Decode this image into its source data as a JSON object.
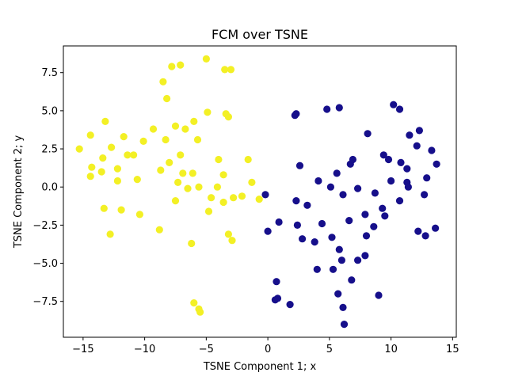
{
  "chart_data": {
    "type": "scatter",
    "title": "FCM over TSNE",
    "xlabel": "TSNE Component 1; x",
    "ylabel": "TSNE Component 2; y",
    "xlim": [
      -16.6,
      15.3
    ],
    "ylim": [
      -9.85,
      9.25
    ],
    "x_ticks": [
      -15,
      -10,
      -5,
      0,
      5,
      10,
      15
    ],
    "x_tick_labels": [
      "−15",
      "−10",
      "−5",
      "0",
      "5",
      "10",
      "15"
    ],
    "y_ticks": [
      -7.5,
      -5.0,
      -2.5,
      0.0,
      2.5,
      5.0,
      7.5
    ],
    "y_tick_labels": [
      "−7.5",
      "−5.0",
      "−2.5",
      "0.0",
      "2.5",
      "5.0",
      "7.5"
    ],
    "grid": false,
    "series": [
      {
        "color": "#f3f025",
        "points": [
          [
            -15.3,
            2.5
          ],
          [
            -14.4,
            3.4
          ],
          [
            -14.3,
            1.3
          ],
          [
            -14.4,
            0.7
          ],
          [
            -13.5,
            1.0
          ],
          [
            -13.4,
            1.9
          ],
          [
            -13.2,
            4.3
          ],
          [
            -13.3,
            -1.4
          ],
          [
            -12.8,
            -3.1
          ],
          [
            -12.7,
            2.6
          ],
          [
            -12.2,
            1.2
          ],
          [
            -12.2,
            0.4
          ],
          [
            -11.9,
            -1.5
          ],
          [
            -11.7,
            3.3
          ],
          [
            -11.4,
            2.1
          ],
          [
            -10.9,
            2.1
          ],
          [
            -10.6,
            0.5
          ],
          [
            -10.4,
            -1.8
          ],
          [
            -10.1,
            3.0
          ],
          [
            -9.3,
            3.8
          ],
          [
            -8.8,
            -2.8
          ],
          [
            -8.7,
            1.1
          ],
          [
            -8.5,
            6.9
          ],
          [
            -8.3,
            3.1
          ],
          [
            -8.2,
            5.8
          ],
          [
            -8.0,
            1.6
          ],
          [
            -7.8,
            7.9
          ],
          [
            -7.5,
            4.0
          ],
          [
            -7.5,
            -0.9
          ],
          [
            -7.3,
            0.3
          ],
          [
            -7.1,
            2.1
          ],
          [
            -7.1,
            8.0
          ],
          [
            -6.9,
            0.9
          ],
          [
            -6.7,
            3.8
          ],
          [
            -6.5,
            -0.1
          ],
          [
            -6.2,
            -3.7
          ],
          [
            -6.1,
            0.9
          ],
          [
            -6.0,
            4.3
          ],
          [
            -6.0,
            -7.6
          ],
          [
            -5.7,
            3.1
          ],
          [
            -5.6,
            0.0
          ],
          [
            -5.6,
            -8.0
          ],
          [
            -5.5,
            -8.2
          ],
          [
            -5.0,
            8.4
          ],
          [
            -4.9,
            4.9
          ],
          [
            -4.8,
            -1.6
          ],
          [
            -4.6,
            -0.7
          ],
          [
            -4.1,
            0.0
          ],
          [
            -4.0,
            1.8
          ],
          [
            -3.6,
            0.8
          ],
          [
            -3.6,
            -1.0
          ],
          [
            -3.5,
            7.7
          ],
          [
            -3.4,
            4.8
          ],
          [
            -3.2,
            4.6
          ],
          [
            -3.2,
            -3.1
          ],
          [
            -3.0,
            7.7
          ],
          [
            -2.9,
            -3.5
          ],
          [
            -2.8,
            -0.7
          ],
          [
            -2.1,
            -0.6
          ],
          [
            -1.6,
            1.8
          ],
          [
            -1.3,
            0.3
          ],
          [
            -0.7,
            -0.8
          ]
        ]
      },
      {
        "color": "#160f8b",
        "points": [
          [
            -0.2,
            -0.5
          ],
          [
            0.0,
            -2.9
          ],
          [
            0.6,
            -7.4
          ],
          [
            0.7,
            -6.2
          ],
          [
            0.8,
            -7.3
          ],
          [
            0.9,
            -2.3
          ],
          [
            1.8,
            -7.7
          ],
          [
            2.2,
            4.7
          ],
          [
            2.3,
            4.8
          ],
          [
            2.3,
            -0.9
          ],
          [
            2.4,
            -2.5
          ],
          [
            2.6,
            1.4
          ],
          [
            2.8,
            -3.4
          ],
          [
            3.2,
            -1.2
          ],
          [
            3.8,
            -3.6
          ],
          [
            4.0,
            -5.4
          ],
          [
            4.1,
            0.4
          ],
          [
            4.4,
            -2.4
          ],
          [
            4.8,
            5.1
          ],
          [
            5.1,
            0.0
          ],
          [
            5.2,
            -3.3
          ],
          [
            5.3,
            -5.4
          ],
          [
            5.6,
            0.9
          ],
          [
            5.7,
            -7.0
          ],
          [
            5.8,
            5.2
          ],
          [
            5.8,
            -4.1
          ],
          [
            6.0,
            -4.8
          ],
          [
            6.1,
            -0.5
          ],
          [
            6.1,
            -7.9
          ],
          [
            6.2,
            -9.0
          ],
          [
            6.6,
            -2.2
          ],
          [
            6.7,
            1.5
          ],
          [
            6.8,
            -6.1
          ],
          [
            6.9,
            1.8
          ],
          [
            7.3,
            -0.1
          ],
          [
            7.3,
            -4.8
          ],
          [
            7.9,
            -4.5
          ],
          [
            7.9,
            -1.8
          ],
          [
            8.0,
            -3.2
          ],
          [
            8.1,
            3.5
          ],
          [
            8.6,
            -2.6
          ],
          [
            8.7,
            -0.4
          ],
          [
            9.0,
            -7.1
          ],
          [
            9.3,
            -1.4
          ],
          [
            9.4,
            2.1
          ],
          [
            9.5,
            -1.9
          ],
          [
            9.8,
            1.8
          ],
          [
            10.0,
            0.4
          ],
          [
            10.2,
            5.4
          ],
          [
            10.7,
            5.1
          ],
          [
            10.7,
            -0.9
          ],
          [
            10.8,
            1.6
          ],
          [
            11.3,
            0.3
          ],
          [
            11.3,
            1.2
          ],
          [
            11.4,
            0.0
          ],
          [
            11.5,
            3.4
          ],
          [
            12.1,
            2.7
          ],
          [
            12.2,
            -2.9
          ],
          [
            12.3,
            3.7
          ],
          [
            12.7,
            -0.5
          ],
          [
            12.8,
            -3.2
          ],
          [
            12.9,
            0.6
          ],
          [
            13.3,
            2.4
          ],
          [
            13.6,
            -2.7
          ],
          [
            13.7,
            1.5
          ]
        ]
      }
    ]
  }
}
